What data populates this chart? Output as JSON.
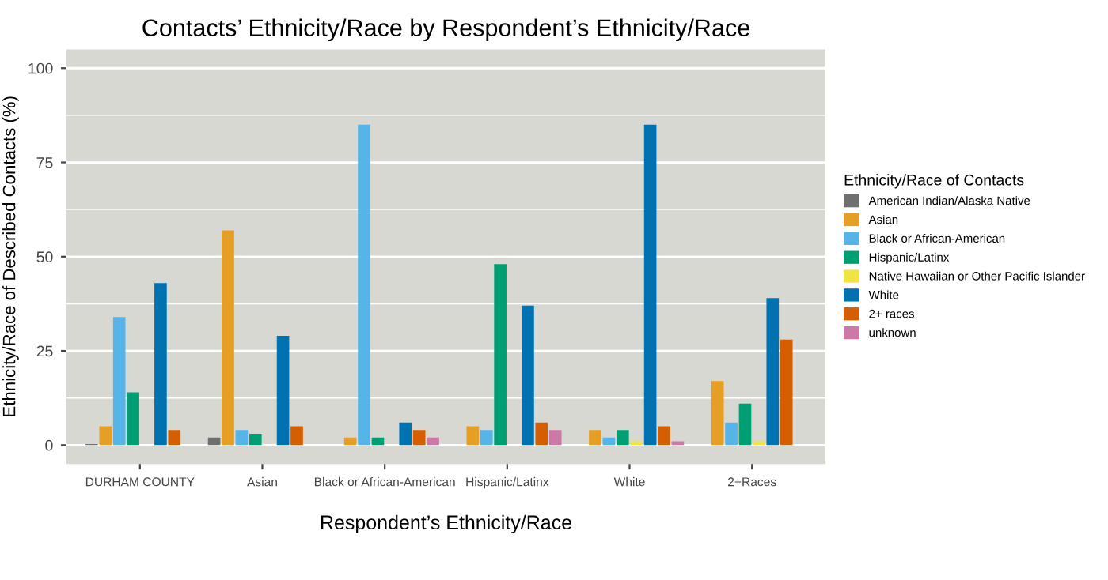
{
  "chart_data": {
    "type": "bar",
    "title": "Contacts’ Ethnicity/Race by Respondent’s Ethnicity/Race",
    "xlabel": "Respondent’s Ethnicity/Race",
    "ylabel": "Ethnicity/Race of Described Contacts (%)",
    "legend_title": "Ethnicity/Race of Contacts",
    "legend": "right",
    "grid": "y",
    "ylim": [
      -5,
      105
    ],
    "yticks": [
      0,
      25,
      50,
      75,
      100
    ],
    "categories": [
      "DURHAM COUNTY",
      "Asian",
      "Black or African-American",
      "Hispanic/Latinx",
      "White",
      "2+Races"
    ],
    "series": [
      {
        "name": "American Indian/Alaska Native",
        "color": "#6f6f6f",
        "values": [
          0.3,
          2,
          null,
          null,
          null,
          null
        ]
      },
      {
        "name": "Asian",
        "color": "#e69f25",
        "values": [
          5,
          57,
          2,
          5,
          4,
          17
        ]
      },
      {
        "name": "Black or African-American",
        "color": "#56b4e9",
        "values": [
          34,
          4,
          85,
          4,
          2,
          6
        ]
      },
      {
        "name": "Hispanic/Latinx",
        "color": "#009e73",
        "values": [
          14,
          3,
          2,
          48,
          4,
          11
        ]
      },
      {
        "name": "Native Hawaiian or Other Pacific Islander",
        "color": "#f0e442",
        "values": [
          null,
          null,
          null,
          null,
          1,
          1
        ]
      },
      {
        "name": "White",
        "color": "#0072b2",
        "values": [
          43,
          29,
          6,
          37,
          85,
          39
        ]
      },
      {
        "name": "2+ races",
        "color": "#d55e00",
        "values": [
          4,
          5,
          4,
          6,
          5,
          28
        ]
      },
      {
        "name": "unknown",
        "color": "#cc79a7",
        "values": [
          null,
          null,
          2,
          4,
          1,
          null
        ]
      }
    ]
  }
}
